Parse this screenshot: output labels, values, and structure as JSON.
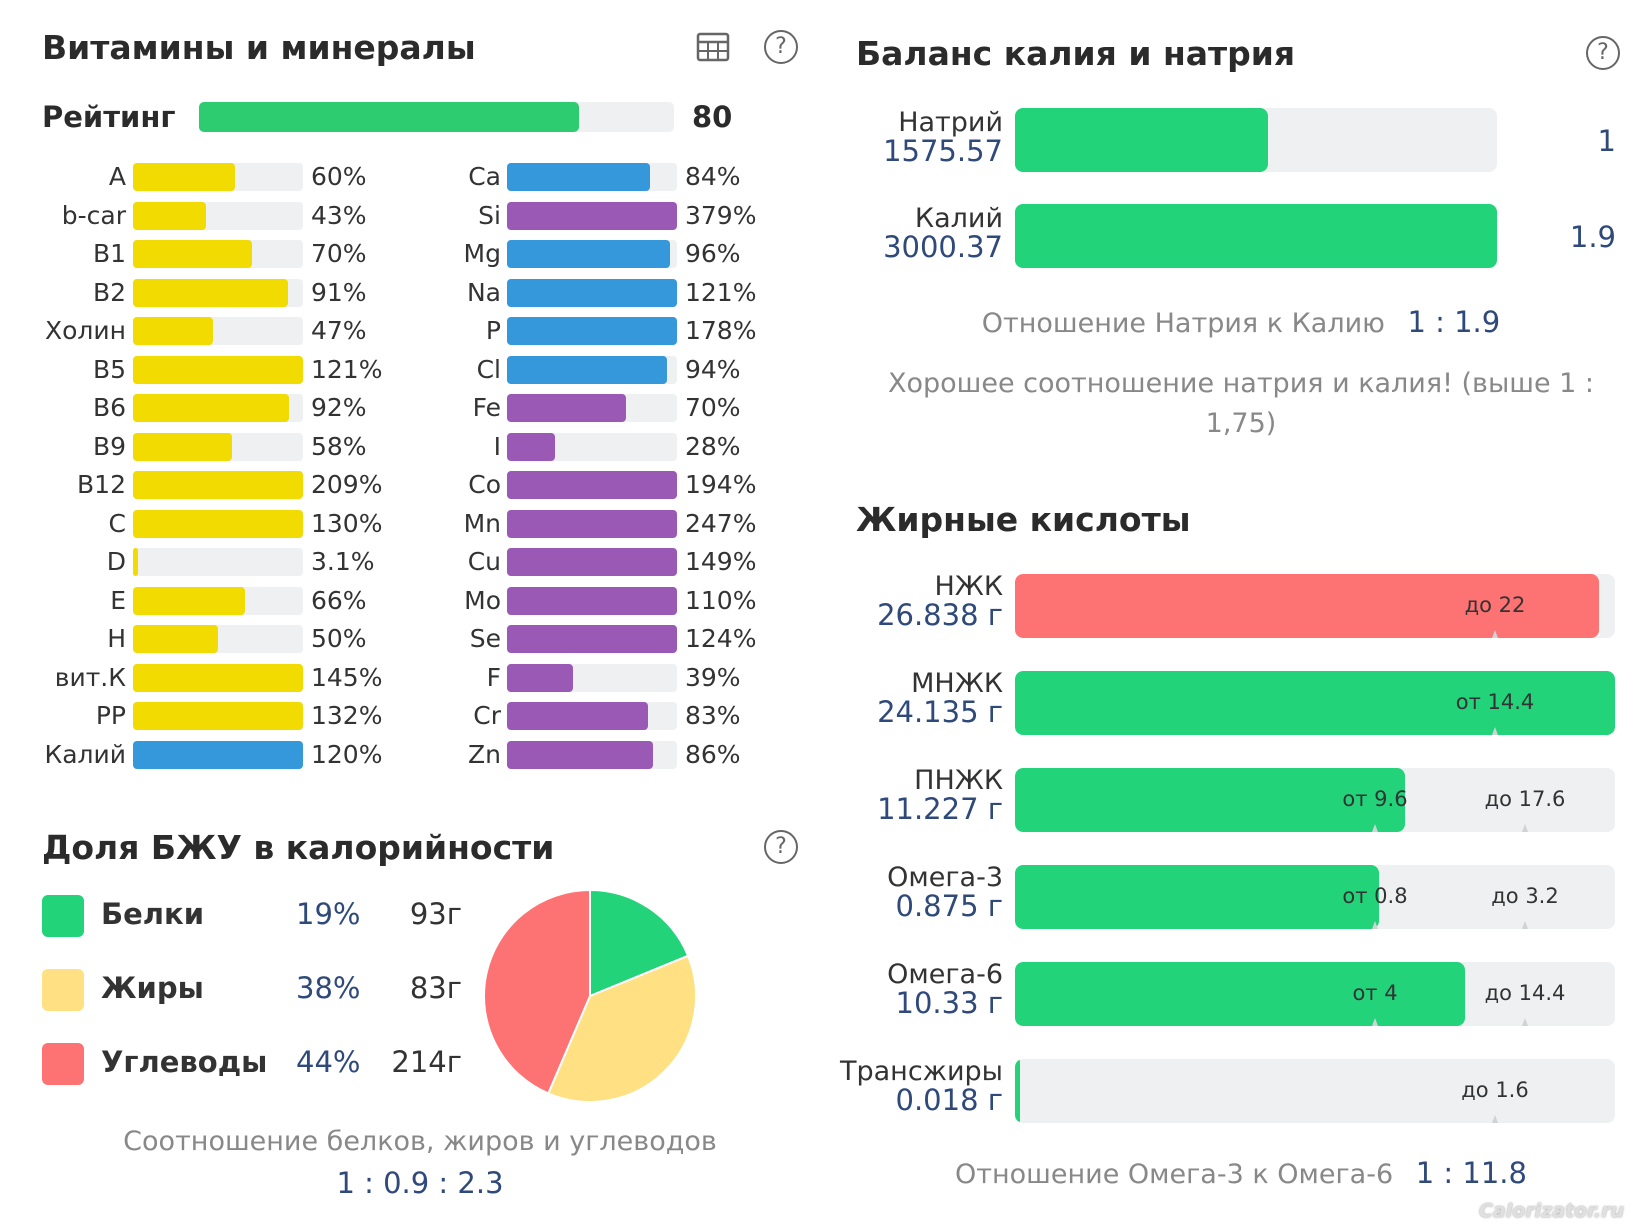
{
  "vitamins": {
    "title": "Витамины и минералы",
    "rating_label": "Рейтинг",
    "rating_value": "80",
    "rating_percent": 80,
    "colors": {
      "yellow": "#f2db00",
      "blue": "#3498db",
      "purple": "#9b59b6",
      "green": "#2ecc71"
    },
    "left": [
      {
        "name": "A",
        "value": "60%",
        "percent": 60,
        "color": "#f2db00"
      },
      {
        "name": "b-car",
        "value": "43%",
        "percent": 43,
        "color": "#f2db00"
      },
      {
        "name": "B1",
        "value": "70%",
        "percent": 70,
        "color": "#f2db00"
      },
      {
        "name": "B2",
        "value": "91%",
        "percent": 91,
        "color": "#f2db00"
      },
      {
        "name": "Холин",
        "value": "47%",
        "percent": 47,
        "color": "#f2db00"
      },
      {
        "name": "B5",
        "value": "121%",
        "percent": 121,
        "color": "#f2db00"
      },
      {
        "name": "B6",
        "value": "92%",
        "percent": 92,
        "color": "#f2db00"
      },
      {
        "name": "B9",
        "value": "58%",
        "percent": 58,
        "color": "#f2db00"
      },
      {
        "name": "B12",
        "value": "209%",
        "percent": 209,
        "color": "#f2db00"
      },
      {
        "name": "C",
        "value": "130%",
        "percent": 130,
        "color": "#f2db00"
      },
      {
        "name": "D",
        "value": "3.1%",
        "percent": 3.1,
        "color": "#f2db00"
      },
      {
        "name": "E",
        "value": "66%",
        "percent": 66,
        "color": "#f2db00"
      },
      {
        "name": "H",
        "value": "50%",
        "percent": 50,
        "color": "#f2db00"
      },
      {
        "name": "вит.К",
        "value": "145%",
        "percent": 145,
        "color": "#f2db00"
      },
      {
        "name": "PP",
        "value": "132%",
        "percent": 132,
        "color": "#f2db00"
      },
      {
        "name": "Калий",
        "value": "120%",
        "percent": 120,
        "color": "#3498db"
      }
    ],
    "right": [
      {
        "name": "Ca",
        "value": "84%",
        "percent": 84,
        "color": "#3498db"
      },
      {
        "name": "Si",
        "value": "379%",
        "percent": 379,
        "color": "#9b59b6"
      },
      {
        "name": "Mg",
        "value": "96%",
        "percent": 96,
        "color": "#3498db"
      },
      {
        "name": "Na",
        "value": "121%",
        "percent": 121,
        "color": "#3498db"
      },
      {
        "name": "P",
        "value": "178%",
        "percent": 178,
        "color": "#3498db"
      },
      {
        "name": "Cl",
        "value": "94%",
        "percent": 94,
        "color": "#3498db"
      },
      {
        "name": "Fe",
        "value": "70%",
        "percent": 70,
        "color": "#9b59b6"
      },
      {
        "name": "I",
        "value": "28%",
        "percent": 28,
        "color": "#9b59b6"
      },
      {
        "name": "Co",
        "value": "194%",
        "percent": 194,
        "color": "#9b59b6"
      },
      {
        "name": "Mn",
        "value": "247%",
        "percent": 247,
        "color": "#9b59b6"
      },
      {
        "name": "Cu",
        "value": "149%",
        "percent": 149,
        "color": "#9b59b6"
      },
      {
        "name": "Mo",
        "value": "110%",
        "percent": 110,
        "color": "#9b59b6"
      },
      {
        "name": "Se",
        "value": "124%",
        "percent": 124,
        "color": "#9b59b6"
      },
      {
        "name": "F",
        "value": "39%",
        "percent": 39,
        "color": "#9b59b6"
      },
      {
        "name": "Cr",
        "value": "83%",
        "percent": 83,
        "color": "#9b59b6"
      },
      {
        "name": "Zn",
        "value": "86%",
        "percent": 86,
        "color": "#9b59b6"
      }
    ]
  },
  "macros": {
    "title": "Доля БЖУ в калорийности",
    "items": [
      {
        "name": "Белки",
        "percent_label": "19%",
        "grams": "93г",
        "color": "#22d37a"
      },
      {
        "name": "Жиры",
        "percent_label": "38%",
        "grams": "83г",
        "color": "#ffe083"
      },
      {
        "name": "Углеводы",
        "percent_label": "44%",
        "grams": "214г",
        "color": "#fd7272"
      }
    ],
    "ratio_caption": "Соотношение белков, жиров и углеводов",
    "ratio_value": "1 : 0.9 : 2.3"
  },
  "chart_data": {
    "type": "pie",
    "categories": [
      "Белки",
      "Жиры",
      "Углеводы"
    ],
    "values": [
      19,
      38,
      44
    ],
    "colors": [
      "#22d37a",
      "#ffe083",
      "#fd7272"
    ]
  },
  "balance": {
    "title": "Баланс калия и натрия",
    "rows": [
      {
        "name": "Натрий",
        "amount": "1575.57",
        "ratio": "1",
        "fraction": 0.525,
        "color": "#22d37a"
      },
      {
        "name": "Калий",
        "amount": "3000.37",
        "ratio": "1.9",
        "fraction": 1.0,
        "color": "#22d37a"
      }
    ],
    "ratio_caption": "Отношение Натрия к Калию",
    "ratio_value": "1 : 1.9",
    "note": "Хорошее соотношение натрия и калия! (выше 1 : 1,75)"
  },
  "fatty": {
    "title": "Жирные кислоты",
    "rows": [
      {
        "name": "НЖК",
        "amount": "26.838 г",
        "fraction": 0.974,
        "color": "#fd7272",
        "markers": [
          {
            "label": "до 22",
            "pos": 0.8
          }
        ]
      },
      {
        "name": "МНЖК",
        "amount": "24.135 г",
        "fraction": 1.0,
        "color": "#22d37a",
        "markers": [
          {
            "label": "от 14.4",
            "pos": 0.8
          }
        ]
      },
      {
        "name": "ПНЖК",
        "amount": "11.227 г",
        "fraction": 0.65,
        "color": "#22d37a",
        "markers": [
          {
            "label": "от 9.6",
            "pos": 0.6
          },
          {
            "label": "до 17.6",
            "pos": 0.85
          }
        ]
      },
      {
        "name": "Омега-3",
        "amount": "0.875 г",
        "fraction": 0.607,
        "color": "#22d37a",
        "markers": [
          {
            "label": "от 0.8",
            "pos": 0.6
          },
          {
            "label": "до 3.2",
            "pos": 0.85
          }
        ]
      },
      {
        "name": "Омега-6",
        "amount": "10.33 г",
        "fraction": 0.75,
        "color": "#22d37a",
        "markers": [
          {
            "label": "от 4",
            "pos": 0.6
          },
          {
            "label": "до 14.4",
            "pos": 0.85
          }
        ]
      },
      {
        "name": "Трансжиры",
        "amount": "0.018 г",
        "fraction": 0.007,
        "color": "#22d37a",
        "markers": [
          {
            "label": "до 1.6",
            "pos": 0.8
          }
        ]
      }
    ],
    "ratio_caption": "Отношение Омега-3 к Омега-6",
    "ratio_value": "1 : 11.8"
  },
  "watermark": "Calorizator.ru"
}
